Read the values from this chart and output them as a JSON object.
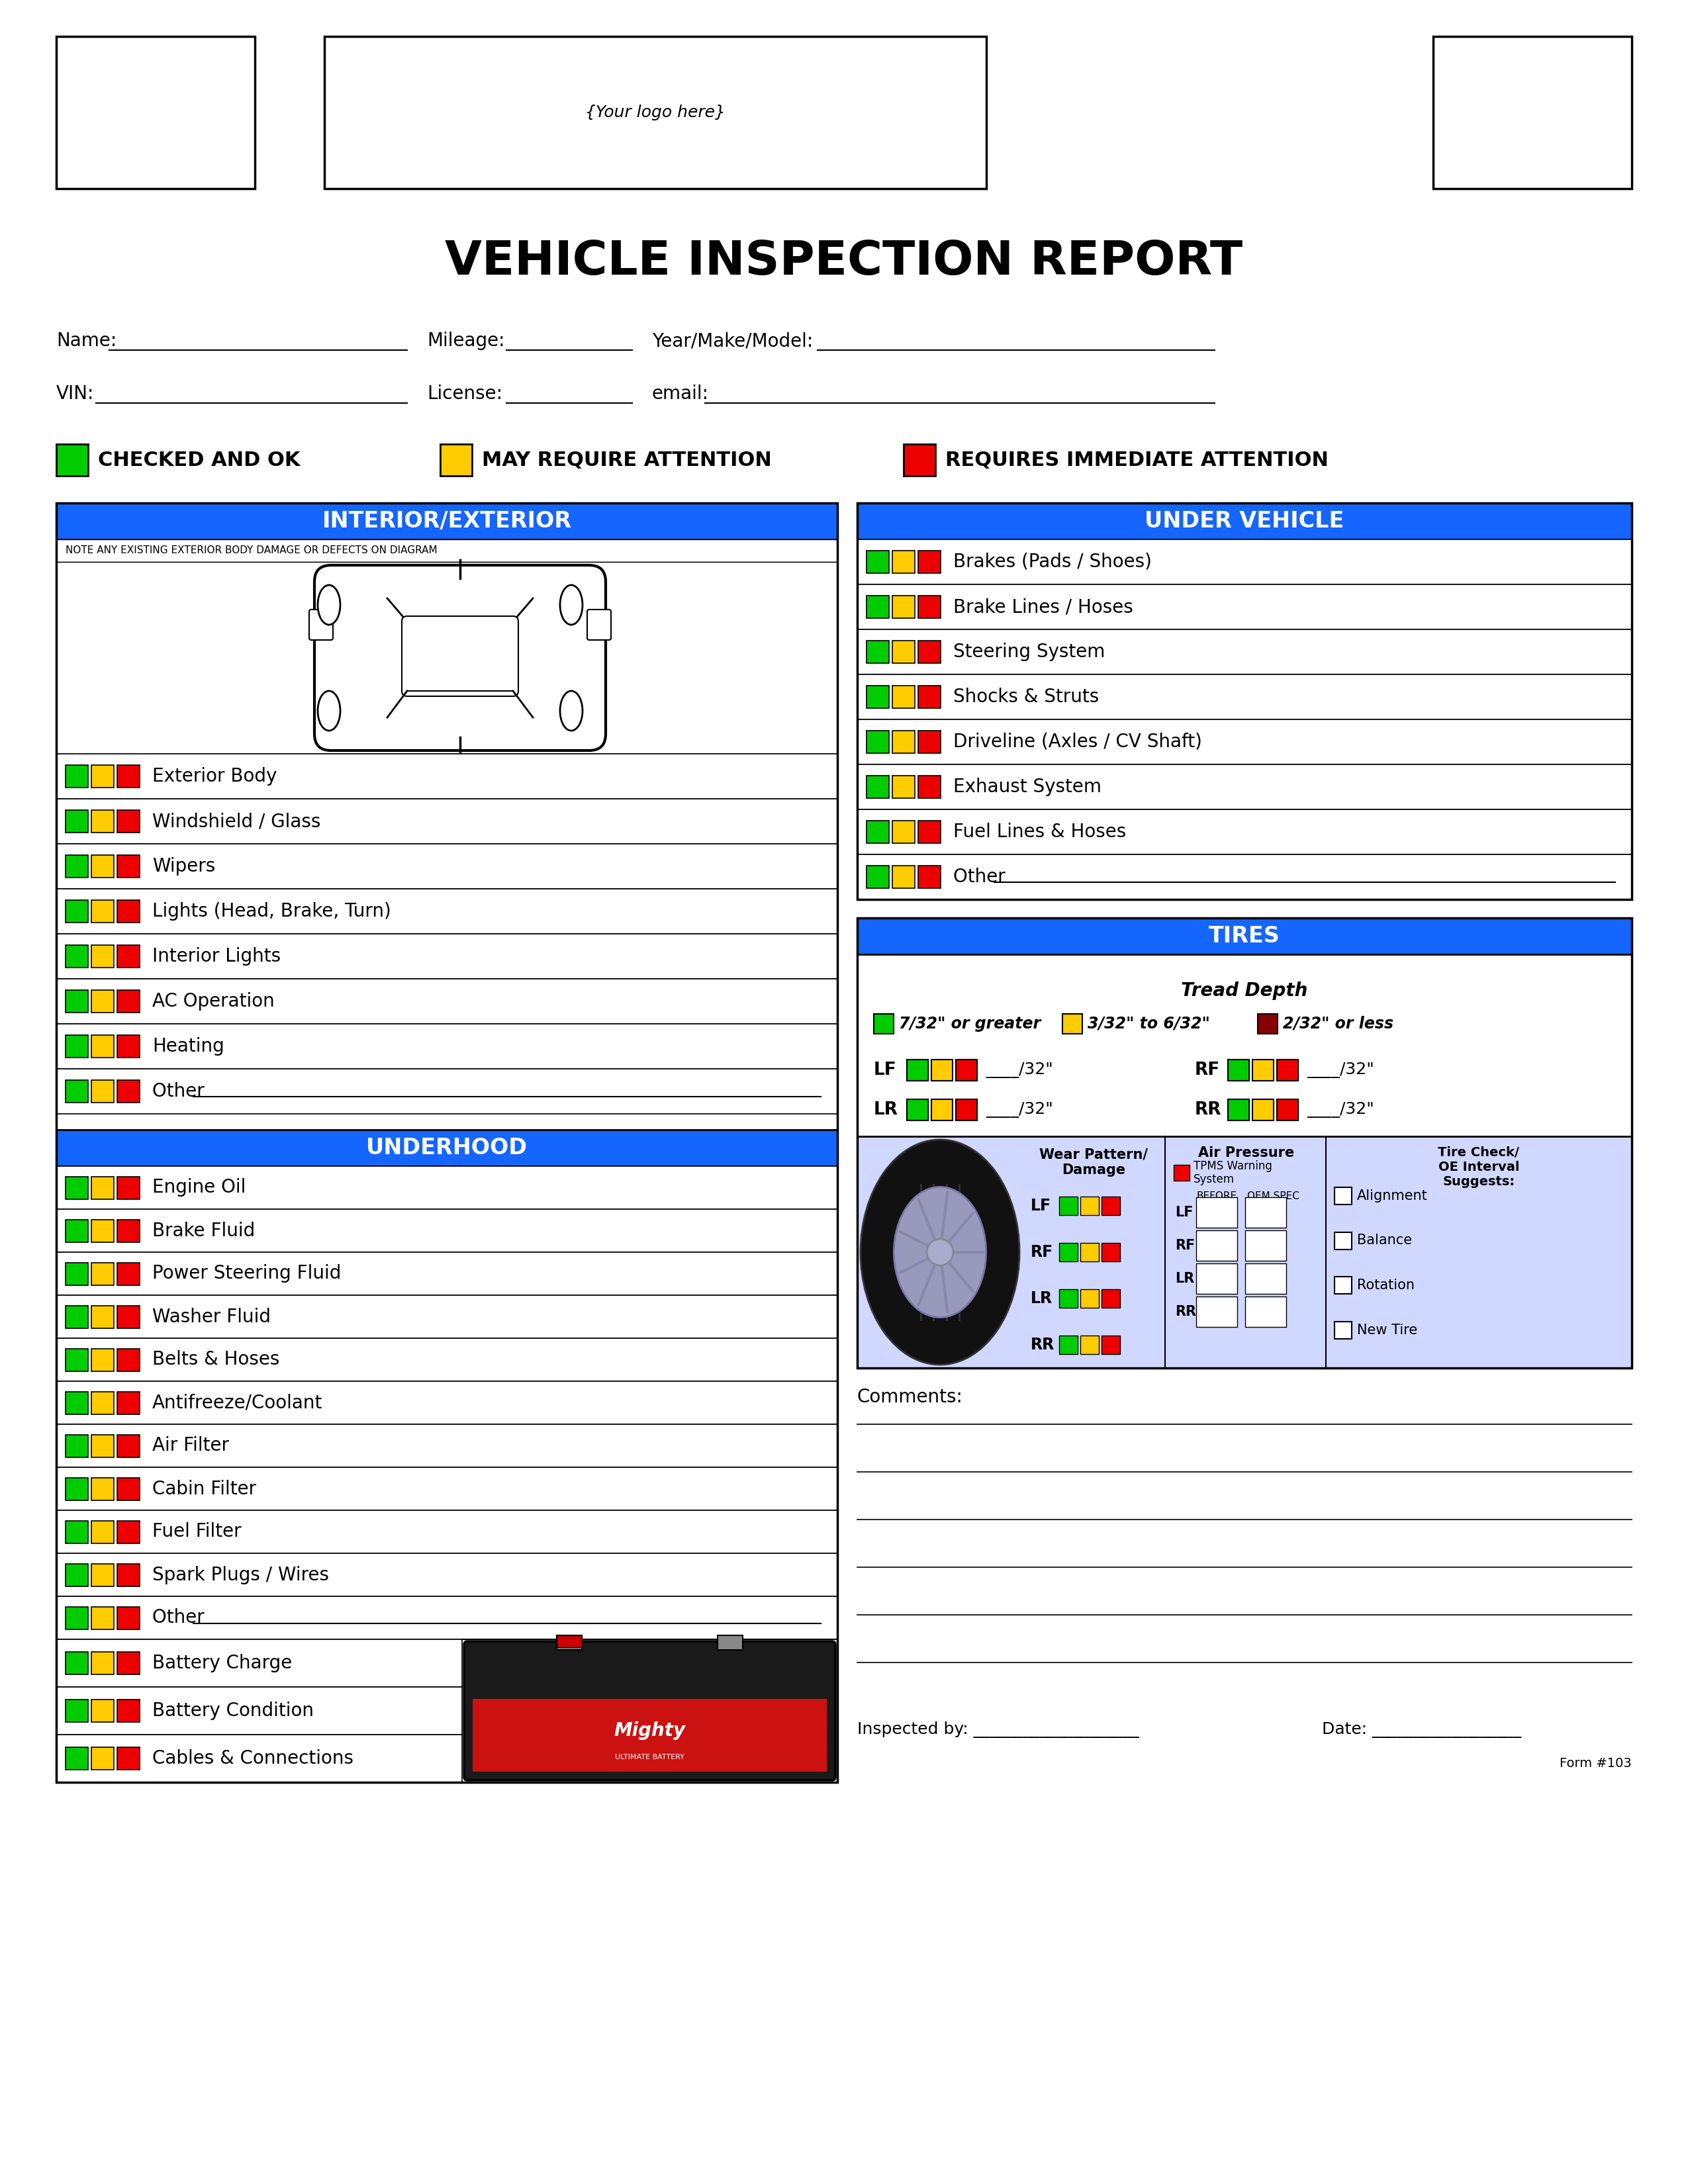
{
  "title": "VEHICLE INSPECTION REPORT",
  "logo_text": "{Your logo here}",
  "header_color": "#1565FF",
  "header_text_color": "#FFFFFF",
  "green": "#00CC00",
  "yellow": "#FFCC00",
  "red": "#EE0000",
  "darkred": "#CC0000",
  "interior_exterior_items": [
    "Exterior Body",
    "Windshield / Glass",
    "Wipers",
    "Lights (Head, Brake, Turn)",
    "Interior Lights",
    "AC Operation",
    "Heating",
    "Other "
  ],
  "underhood_items": [
    "Engine Oil",
    "Brake Fluid",
    "Power Steering Fluid",
    "Washer Fluid",
    "Belts & Hoses",
    "Antifreeze/Coolant",
    "Air Filter",
    "Cabin Filter",
    "Fuel Filter",
    "Spark Plugs / Wires",
    "Other "
  ],
  "under_vehicle_items": [
    "Brakes (Pads / Shoes)",
    "Brake Lines / Hoses",
    "Steering System",
    "Shocks & Struts",
    "Driveline (Axles / CV Shaft)",
    "Exhaust System",
    "Fuel Lines & Hoses",
    "Other "
  ],
  "battery_items": [
    "Battery Charge",
    "Battery Condition",
    "Cables & Connections"
  ],
  "check_items": [
    "Alignment",
    "Balance",
    "Rotation",
    "New Tire"
  ],
  "wheel_labels": [
    "LF",
    "RF",
    "LR",
    "RR"
  ],
  "bg_color": "#FFFFFF",
  "tires_bg": "#D0DCFF"
}
